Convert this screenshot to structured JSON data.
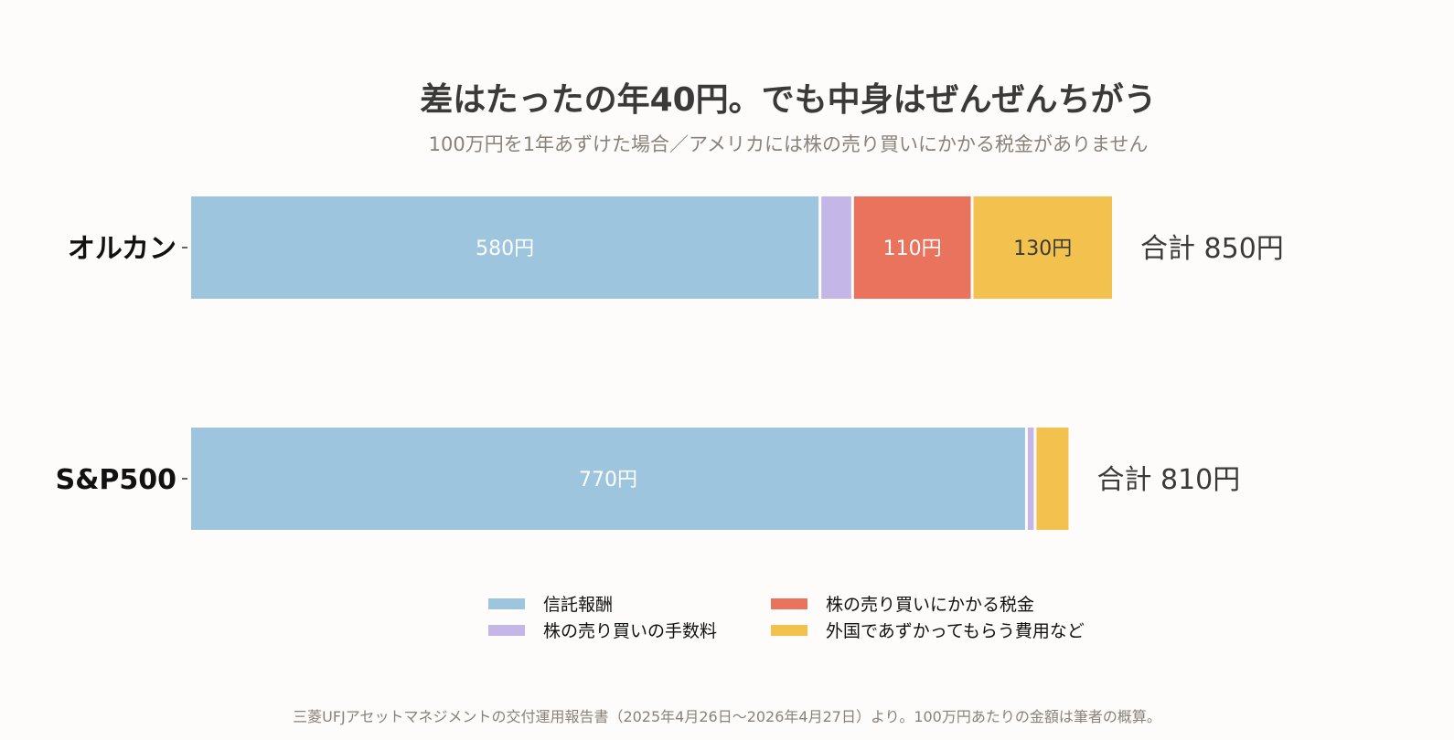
{
  "chart_data": {
    "type": "bar",
    "orientation": "horizontal",
    "stacked": true,
    "title": "差はたったの年40円。でも中身はぜんぜんちがう",
    "subtitle": "100万円を1年あずけた場合／アメリカには株の売り買いにかかる税金がありません",
    "categories": [
      "オルカン",
      "S&P500"
    ],
    "series": [
      {
        "name": "信託報酬",
        "color": "#9ec5de",
        "values": [
          580,
          770
        ],
        "labels": [
          "580円",
          "770円"
        ],
        "label_color": "#ffffff"
      },
      {
        "name": "株の売り買いの手数料",
        "color": "#c4b6e7",
        "values": [
          30,
          8
        ],
        "labels": [
          "",
          ""
        ],
        "label_color": "#ffffff"
      },
      {
        "name": "株の売り買いにかかる税金",
        "color": "#e9735c",
        "values": [
          110,
          0
        ],
        "labels": [
          "110円",
          ""
        ],
        "label_color": "#ffffff"
      },
      {
        "name": "外国であずかってもらう費用など",
        "color": "#f2c14e",
        "values": [
          130,
          32
        ],
        "labels": [
          "130円",
          ""
        ],
        "label_color": "#3a3a3a"
      }
    ],
    "totals": [
      "合計 850円",
      "合計 810円"
    ],
    "xlim": [
      0,
      850
    ],
    "grid": false,
    "legend_position": "bottom",
    "source": "三菱UFJアセットマネジメントの交付運用報告書（2025年4月26日〜2026年4月27日）より。100万円あたりの金額は筆者の概算。"
  }
}
